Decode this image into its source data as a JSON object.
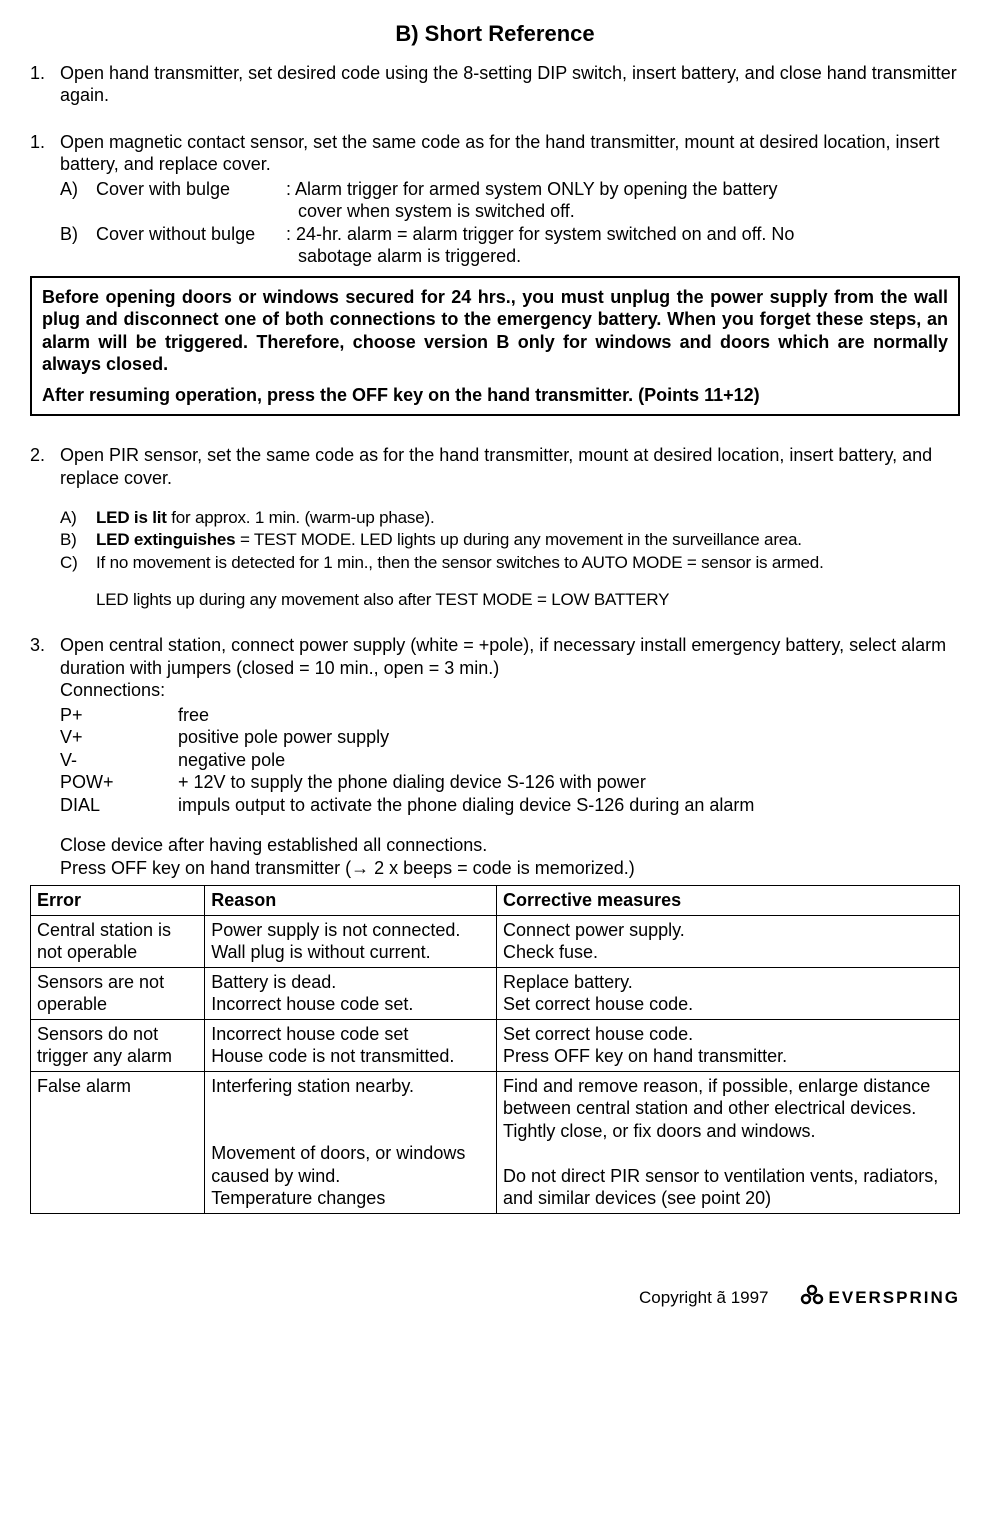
{
  "title": "B) Short Reference",
  "items": [
    {
      "num": "1.",
      "text": "Open hand transmitter, set desired code using the 8-setting DIP switch, insert battery, and close hand transmitter again."
    },
    {
      "num": "1.",
      "text": "Open magnetic contact sensor, set the same code as for the hand transmitter, mount at desired location, insert battery, and replace cover.",
      "subs": [
        {
          "letter": "A)",
          "label": "Cover with bulge",
          "desc1": ": Alarm trigger for armed system ONLY by opening the battery",
          "desc2": "cover when system is switched off."
        },
        {
          "letter": "B)",
          "label": "Cover without bulge",
          "desc1": ": 24-hr. alarm = alarm trigger for system switched on and off. No",
          "desc2": "sabotage alarm is triggered."
        }
      ]
    }
  ],
  "box": {
    "p1": "Before opening doors or windows secured for 24 hrs., you must unplug the power supply from the wall plug and disconnect one of both connections to the emergency battery. When you forget these steps, an alarm will be triggered. Therefore, choose version B only for windows and doors which are normally always closed.",
    "p2": "After resuming operation, press the OFF key on the hand transmitter. (Points 11+12)"
  },
  "item2": {
    "num": "2.",
    "text": "Open PIR sensor, set the same code as for the hand transmitter, mount at desired location, insert battery, and replace cover.",
    "subs": [
      {
        "letter": "A)",
        "bold": "LED is lit",
        "rest": " for approx. 1 min. (warm-up phase)."
      },
      {
        "letter": "B)",
        "bold": "LED extinguishes",
        "rest": " = TEST MODE. LED lights up during any movement in the surveillance area."
      },
      {
        "letter": "C)",
        "bold": "",
        "rest": "If no movement is detected for 1 min., then the sensor switches to AUTO MODE = sensor is armed."
      }
    ],
    "note": "LED lights up during any movement also after TEST MODE = LOW BATTERY"
  },
  "item3": {
    "num": "3.",
    "text": "Open central station, connect power supply (white = +pole), if necessary install emergency battery, select alarm duration with jumpers (closed = 10 min., open = 3 min.)",
    "conn_header": "Connections:",
    "connections": [
      {
        "k": "P+",
        "v": "free"
      },
      {
        "k": "V+",
        "v": "positive pole power supply"
      },
      {
        "k": "V-",
        "v": "negative pole"
      },
      {
        "k": "POW+",
        "v": "+ 12V to supply the phone dialing device S-126 with power"
      },
      {
        "k": "DIAL",
        "v": "impuls output to activate the phone dialing device S-126 during an alarm"
      }
    ],
    "closing1": "Close device after having established all connections.",
    "closing2": "Press OFF key on hand transmitter (→ 2 x beeps = code is memorized.)"
  },
  "table": {
    "headers": [
      "Error",
      "Reason",
      "Corrective measures"
    ],
    "rows": [
      [
        "Central station is not operable",
        "Power supply is not connected. Wall plug is without current.",
        "Connect power supply.\nCheck fuse."
      ],
      [
        "Sensors are not operable",
        "Battery is dead.\nIncorrect house code set.",
        "Replace battery.\nSet correct house code."
      ],
      [
        "Sensors do not trigger any alarm",
        "Incorrect house code set\nHouse code is not transmitted.",
        "Set correct house code.\nPress OFF key on hand transmitter."
      ],
      [
        "False alarm",
        "Interfering station nearby.\n\n\nMovement of doors, or windows caused by wind.\nTemperature changes",
        "Find and remove reason, if possible, enlarge distance between central station and other electrical devices.\nTightly close, or fix  doors and windows.\n\nDo not direct PIR sensor to ventilation vents, radiators, and similar devices (see point 20)"
      ]
    ]
  },
  "footer": {
    "copyright": "Copyright ã 1997",
    "brand": "EVERSPRING"
  }
}
